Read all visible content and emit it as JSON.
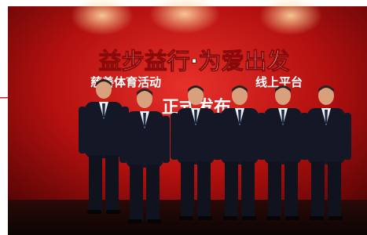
{
  "banner": {
    "title": "益步益行·为爱出发",
    "subtitle_left": "慈善体育活动",
    "subtitle_right": "线上平台",
    "caption": "正式发布"
  }
}
